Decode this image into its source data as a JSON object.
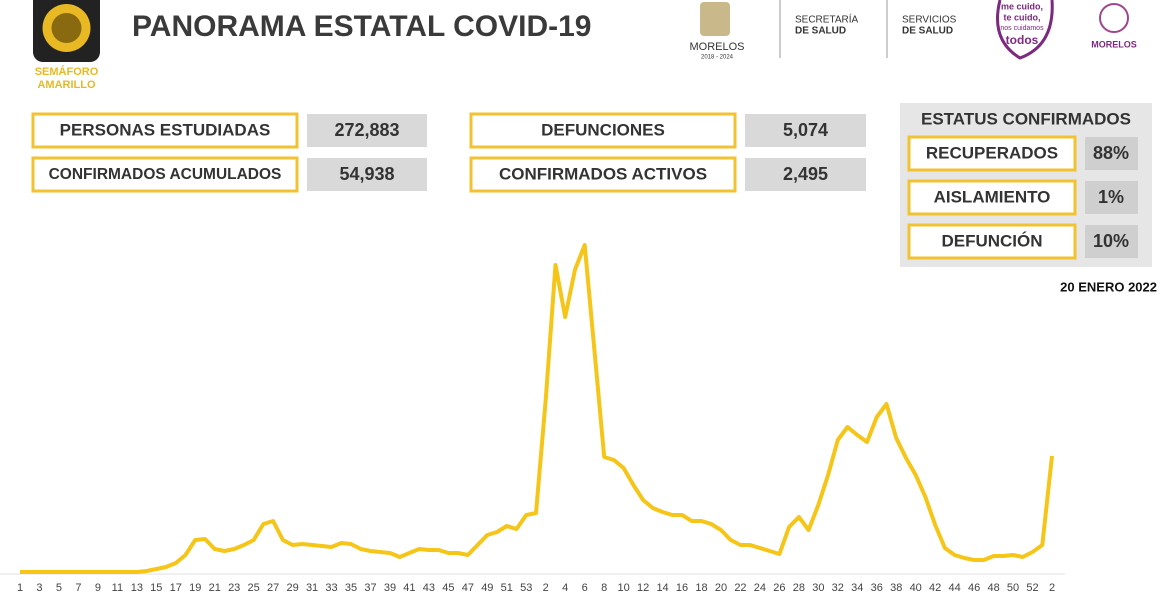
{
  "header": {
    "semaforo": [
      "SEMÁFORO",
      "AMARILLO"
    ],
    "title": "PANORAMA ESTATAL COVID-19",
    "logos": {
      "morelos": "MORELOS",
      "period": "2018 - 2024",
      "secretaria": [
        "SECRETARÍA",
        "DE SALUD"
      ],
      "servicios": [
        "SERVICIOS",
        "DE SALUD"
      ],
      "slogan": [
        "me cuido,",
        "te cuido,",
        "nos cuidamos",
        "todos"
      ],
      "morelos2": "MORELOS"
    }
  },
  "stats": [
    {
      "label": "PERSONAS ESTUDIADAS",
      "value": "272,883"
    },
    {
      "label": "CONFIRMADOS ACUMULADOS",
      "value": "54,938"
    },
    {
      "label": "DEFUNCIONES",
      "value": "5,074"
    },
    {
      "label": "CONFIRMADOS ACTIVOS",
      "value": "2,495"
    }
  ],
  "status": {
    "title": "ESTATUS CONFIRMADOS",
    "items": [
      {
        "label": "RECUPERADOS",
        "value": "88%"
      },
      {
        "label": "AISLAMIENTO",
        "value": "1%"
      },
      {
        "label": "DEFUNCIÓN",
        "value": "10%"
      }
    ]
  },
  "date": "20 ENERO 2022",
  "chart_data": {
    "type": "line",
    "color": "#f5c518",
    "ylim": [
      0,
      340
    ],
    "categories": [
      "1",
      null,
      "3",
      null,
      "5",
      null,
      "7",
      null,
      "9",
      null,
      "11",
      null,
      "13",
      null,
      "15",
      null,
      "17",
      null,
      "19",
      null,
      "21",
      null,
      "23",
      null,
      "25",
      null,
      "27",
      null,
      "29",
      null,
      "31",
      null,
      "33",
      null,
      "35",
      null,
      "37",
      null,
      "39",
      null,
      "41",
      null,
      "43",
      null,
      "45",
      null,
      "47",
      null,
      "49",
      null,
      "51",
      null,
      "53",
      null,
      "2",
      null,
      "4",
      null,
      "6",
      null,
      "8",
      null,
      "10",
      null,
      "12",
      null,
      "14",
      null,
      "16",
      null,
      "18",
      null,
      "20",
      null,
      "22",
      null,
      "24",
      null,
      "26",
      null,
      "28",
      null,
      "30",
      null,
      "32",
      null,
      "34",
      null,
      "36",
      null,
      "38",
      null,
      "40",
      null,
      "42",
      null,
      "44",
      null,
      "46",
      null,
      "48",
      null,
      "50",
      null,
      "52",
      null,
      "2"
    ],
    "values": [
      0,
      0,
      0,
      0,
      0,
      0,
      0,
      0,
      0,
      0,
      0,
      0,
      0,
      1,
      3,
      5,
      9,
      17,
      32,
      33,
      23,
      21,
      23,
      27,
      32,
      48,
      51,
      32,
      27,
      28,
      27,
      26,
      25,
      29,
      28,
      23,
      21,
      20,
      19,
      15,
      19,
      23,
      22,
      22,
      19,
      19,
      17,
      27,
      37,
      40,
      46,
      43,
      57,
      59,
      172,
      307,
      255,
      302,
      327,
      222,
      115,
      112,
      104,
      87,
      72,
      64,
      60,
      57,
      57,
      51,
      51,
      48,
      42,
      32,
      27,
      27,
      24,
      21,
      18,
      45,
      55,
      42,
      67,
      97,
      132,
      145,
      137,
      130,
      155,
      168,
      134,
      114,
      97,
      75,
      47,
      24,
      17,
      14,
      12,
      12,
      16,
      16,
      17,
      15,
      20,
      27,
      116
    ]
  }
}
